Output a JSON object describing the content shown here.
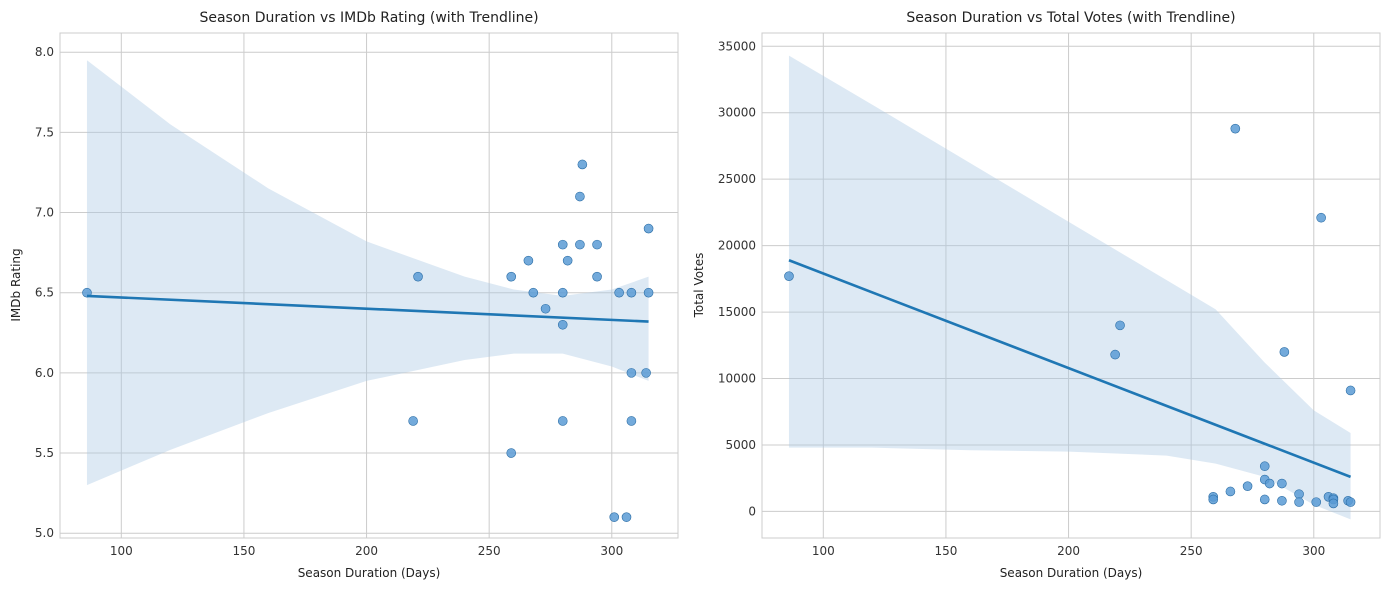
{
  "chart_data": [
    {
      "type": "scatter",
      "title": "Season Duration vs IMDb Rating (with Trendline)",
      "xlabel": "Season Duration (Days)",
      "ylabel": "IMDb Rating",
      "xlim": [
        75,
        327
      ],
      "ylim": [
        4.97,
        8.12
      ],
      "xticks": [
        100,
        150,
        200,
        250,
        300
      ],
      "yticks": [
        5.0,
        5.5,
        6.0,
        6.5,
        7.0,
        7.5,
        8.0
      ],
      "ytick_decimals": 1,
      "grid": true,
      "points": {
        "x": [
          86,
          219,
          221,
          259,
          259,
          266,
          268,
          273,
          280,
          280,
          280,
          280,
          282,
          287,
          287,
          288,
          294,
          294,
          301,
          303,
          306,
          308,
          308,
          308,
          314,
          315,
          315
        ],
        "y": [
          6.5,
          5.7,
          6.6,
          6.6,
          5.5,
          6.7,
          6.5,
          6.4,
          6.8,
          6.5,
          6.3,
          5.7,
          6.7,
          6.8,
          7.1,
          7.3,
          6.8,
          6.6,
          5.1,
          6.5,
          5.1,
          6.5,
          6.0,
          5.7,
          6.0,
          6.9,
          6.5
        ]
      },
      "trendline": {
        "x": [
          86,
          315
        ],
        "y": [
          6.48,
          6.32
        ]
      },
      "confidence_band": {
        "x": [
          86,
          120,
          160,
          200,
          240,
          260,
          280,
          300,
          315
        ],
        "upper": [
          7.95,
          7.55,
          7.15,
          6.82,
          6.6,
          6.52,
          6.48,
          6.52,
          6.6
        ],
        "lower": [
          5.3,
          5.52,
          5.75,
          5.95,
          6.08,
          6.12,
          6.12,
          6.04,
          5.95
        ]
      },
      "colors": {
        "points": "#5b9bd5",
        "trendline": "#1f77b4",
        "band": "#aac8e4"
      }
    },
    {
      "type": "scatter",
      "title": "Season Duration vs Total Votes (with Trendline)",
      "xlabel": "Season Duration (Days)",
      "ylabel": "Total Votes",
      "xlim": [
        75,
        327
      ],
      "ylim": [
        -2000,
        36000
      ],
      "xticks": [
        100,
        150,
        200,
        250,
        300
      ],
      "yticks": [
        0,
        5000,
        10000,
        15000,
        20000,
        25000,
        30000,
        35000
      ],
      "ytick_decimals": 0,
      "grid": true,
      "points": {
        "x": [
          86,
          219,
          221,
          259,
          259,
          266,
          268,
          273,
          280,
          280,
          280,
          282,
          287,
          287,
          288,
          294,
          294,
          301,
          303,
          306,
          308,
          308,
          308,
          314,
          315,
          315
        ],
        "y": [
          17700,
          11800,
          14000,
          1100,
          900,
          1500,
          28800,
          1900,
          3400,
          2400,
          900,
          2100,
          2100,
          800,
          12000,
          1300,
          700,
          700,
          22100,
          1100,
          1000,
          900,
          600,
          800,
          9100,
          700
        ]
      },
      "trendline": {
        "x": [
          86,
          315
        ],
        "y": [
          18900,
          2600
        ]
      },
      "confidence_band": {
        "x": [
          86,
          120,
          160,
          200,
          240,
          260,
          280,
          300,
          315
        ],
        "upper": [
          34300,
          30600,
          26200,
          21800,
          17400,
          15200,
          11200,
          7600,
          5900
        ],
        "lower": [
          4800,
          4800,
          4600,
          4500,
          4200,
          3600,
          2600,
          500,
          -600
        ]
      },
      "colors": {
        "points": "#5b9bd5",
        "trendline": "#1f77b4",
        "band": "#aac8e4"
      }
    }
  ]
}
